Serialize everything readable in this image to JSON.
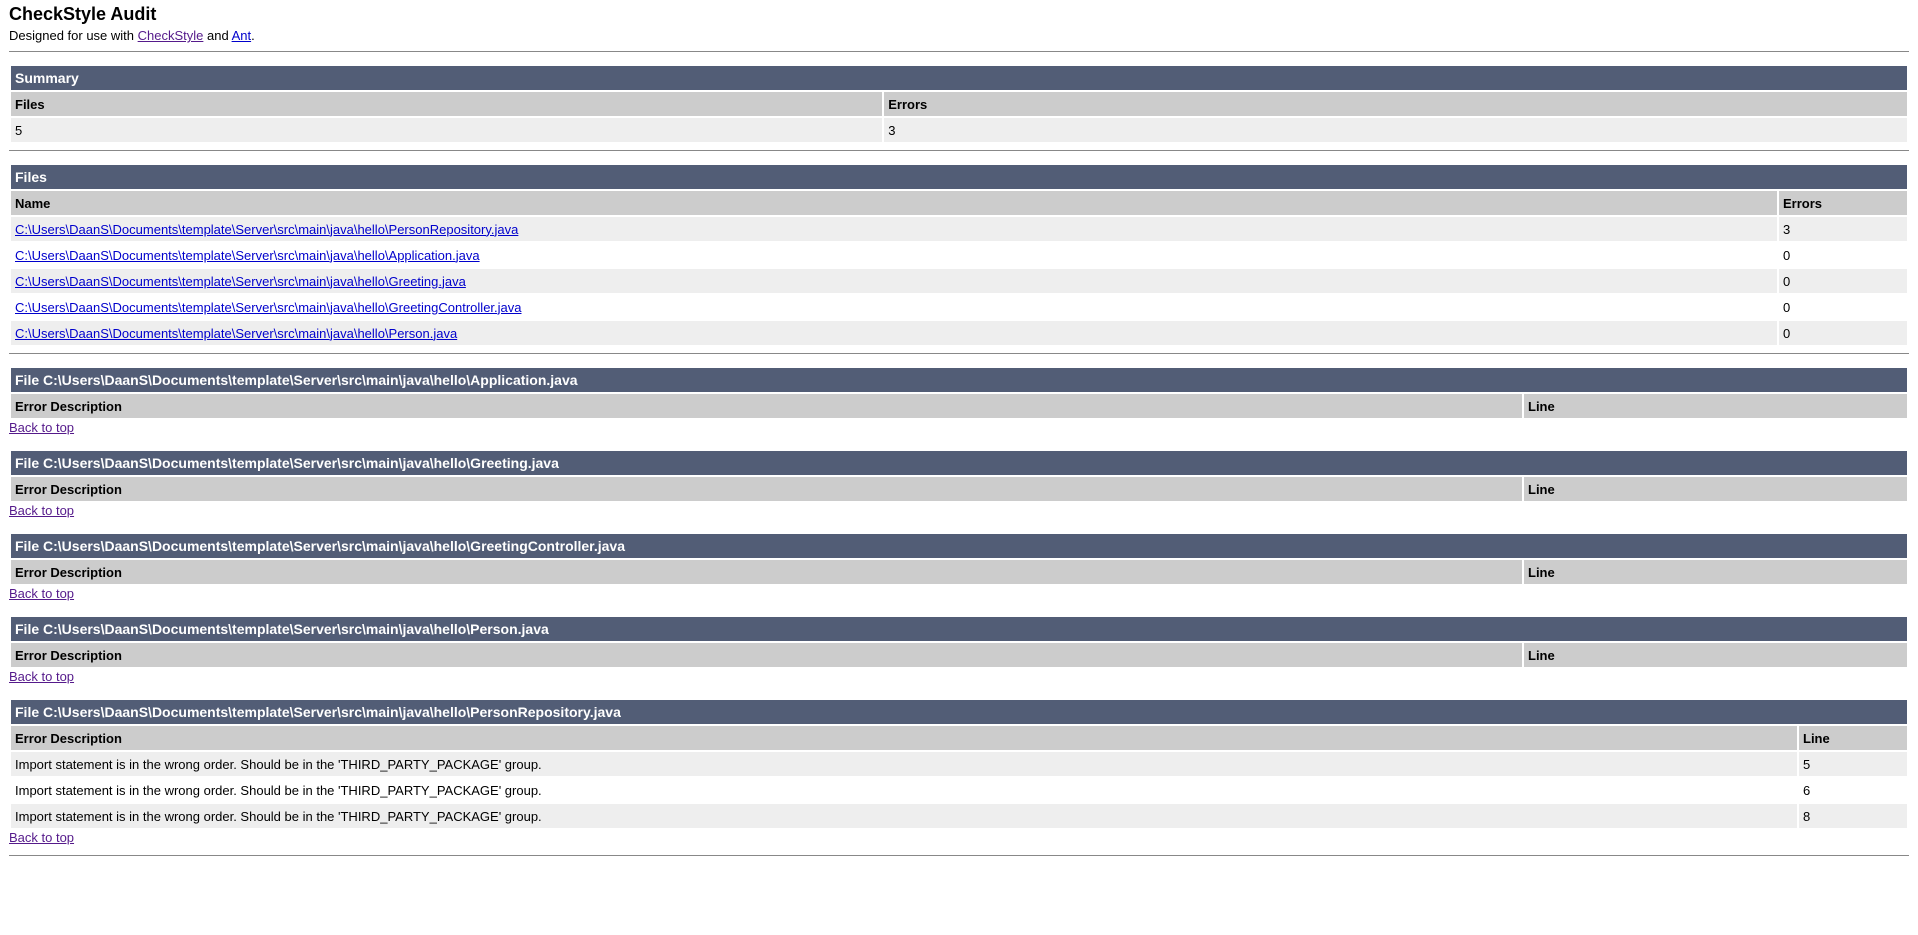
{
  "header": {
    "title": "CheckStyle Audit",
    "subtitle_prefix": "Designed for use with ",
    "link_checkstyle": "CheckStyle",
    "and": " and ",
    "link_ant": "Ant",
    "suffix": "."
  },
  "summary": {
    "title": "Summary",
    "col_files": "Files",
    "col_errors": "Errors",
    "files": "5",
    "errors": "3"
  },
  "files": {
    "title": "Files",
    "col_name": "Name",
    "col_errors": "Errors",
    "rows": [
      {
        "name": "C:\\Users\\DaanS\\Documents\\template\\Server\\src\\main\\java\\hello\\PersonRepository.java",
        "errors": "3"
      },
      {
        "name": "C:\\Users\\DaanS\\Documents\\template\\Server\\src\\main\\java\\hello\\Application.java",
        "errors": "0"
      },
      {
        "name": "C:\\Users\\DaanS\\Documents\\template\\Server\\src\\main\\java\\hello\\Greeting.java",
        "errors": "0"
      },
      {
        "name": "C:\\Users\\DaanS\\Documents\\template\\Server\\src\\main\\java\\hello\\GreetingController.java",
        "errors": "0"
      },
      {
        "name": "C:\\Users\\DaanS\\Documents\\template\\Server\\src\\main\\java\\hello\\Person.java",
        "errors": "0"
      }
    ]
  },
  "details": {
    "col_desc": "Error Description",
    "col_line": "Line",
    "back": "Back to top",
    "sections": [
      {
        "title": "File C:\\Users\\DaanS\\Documents\\template\\Server\\src\\main\\java\\hello\\Application.java",
        "errors": []
      },
      {
        "title": "File C:\\Users\\DaanS\\Documents\\template\\Server\\src\\main\\java\\hello\\Greeting.java",
        "errors": []
      },
      {
        "title": "File C:\\Users\\DaanS\\Documents\\template\\Server\\src\\main\\java\\hello\\GreetingController.java",
        "errors": []
      },
      {
        "title": "File C:\\Users\\DaanS\\Documents\\template\\Server\\src\\main\\java\\hello\\Person.java",
        "errors": []
      },
      {
        "title": "File C:\\Users\\DaanS\\Documents\\template\\Server\\src\\main\\java\\hello\\PersonRepository.java",
        "errors": [
          {
            "desc": "Import statement is in the wrong order. Should be in the 'THIRD_PARTY_PACKAGE' group.",
            "line": "5"
          },
          {
            "desc": "Import statement is in the wrong order. Should be in the 'THIRD_PARTY_PACKAGE' group.",
            "line": "6"
          },
          {
            "desc": "Import statement is in the wrong order. Should be in the 'THIRD_PARTY_PACKAGE' group.",
            "line": "8"
          }
        ]
      }
    ]
  }
}
